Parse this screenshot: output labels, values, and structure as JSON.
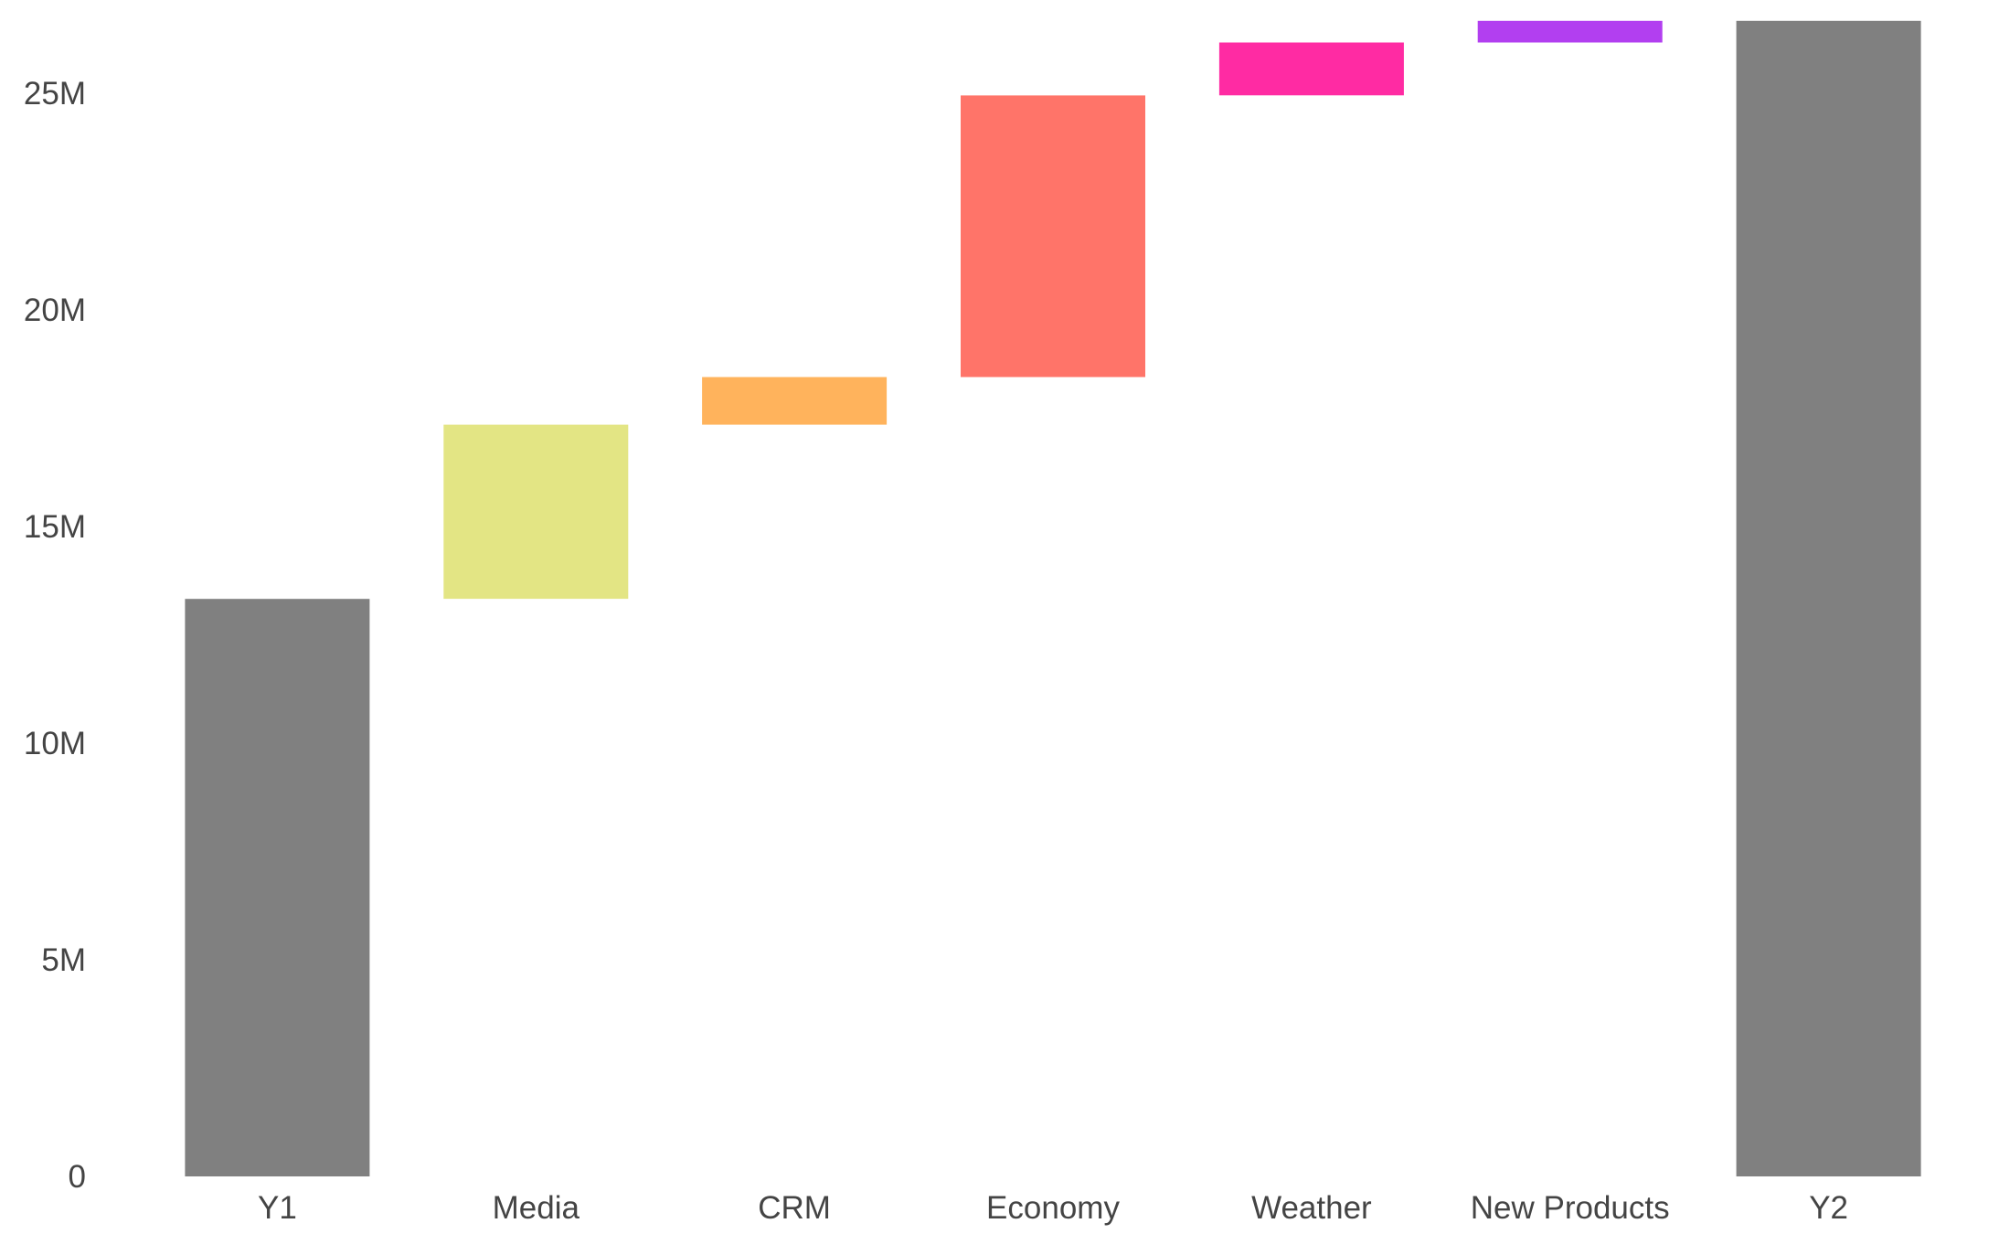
{
  "chart_data": {
    "type": "bar",
    "subtype": "waterfall",
    "title": "",
    "xlabel": "",
    "ylabel": "",
    "ylim": [
      0,
      26700000
    ],
    "grid": false,
    "legend": "none",
    "y_ticks": [
      {
        "value": 0,
        "label": "0"
      },
      {
        "value": 5000000,
        "label": "5M"
      },
      {
        "value": 10000000,
        "label": "10M"
      },
      {
        "value": 15000000,
        "label": "15M"
      },
      {
        "value": 20000000,
        "label": "20M"
      },
      {
        "value": 25000000,
        "label": "25M"
      }
    ],
    "bars": [
      {
        "category": "Y1",
        "kind": "total",
        "start": 0,
        "end": 13330000,
        "color": "#808080"
      },
      {
        "category": "Media",
        "kind": "delta",
        "start": 13330000,
        "end": 17350000,
        "color": "#e3e584"
      },
      {
        "category": "CRM",
        "kind": "delta",
        "start": 17350000,
        "end": 18450000,
        "color": "#ffb35c"
      },
      {
        "category": "Economy",
        "kind": "delta",
        "start": 18450000,
        "end": 24950000,
        "color": "#ff7469"
      },
      {
        "category": "Weather",
        "kind": "delta",
        "start": 24950000,
        "end": 26170000,
        "color": "#ff2ba3"
      },
      {
        "category": "New Products",
        "kind": "delta",
        "start": 26170000,
        "end": 26670000,
        "color": "#b23ff0"
      },
      {
        "category": "Y2",
        "kind": "total",
        "start": 0,
        "end": 26670000,
        "color": "#808080"
      }
    ]
  }
}
